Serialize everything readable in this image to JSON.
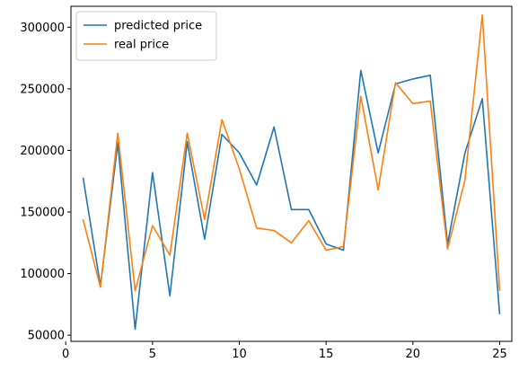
{
  "chart_data": {
    "type": "line",
    "title": "",
    "xlabel": "",
    "ylabel": "",
    "x": [
      1,
      2,
      3,
      4,
      5,
      6,
      7,
      8,
      9,
      10,
      11,
      12,
      13,
      14,
      15,
      16,
      17,
      18,
      19,
      20,
      21,
      22,
      23,
      24,
      25
    ],
    "xlim": [
      0.3,
      25.7
    ],
    "ylim": [
      45000,
      317000
    ],
    "xticks": [
      0,
      5,
      10,
      15,
      20,
      25
    ],
    "xtick_labels": [
      "0",
      "5",
      "10",
      "15",
      "20",
      "25"
    ],
    "yticks": [
      50000,
      100000,
      150000,
      200000,
      250000,
      300000
    ],
    "ytick_labels": [
      "50000",
      "100000",
      "150000",
      "200000",
      "250000",
      "300000"
    ],
    "grid": false,
    "legend_position": "top-left",
    "series": [
      {
        "name": "predicted price",
        "color": "#1f77b4",
        "values": [
          178000,
          90000,
          206000,
          55000,
          182000,
          82000,
          207000,
          128000,
          213000,
          198000,
          172000,
          219000,
          152000,
          152000,
          124000,
          119000,
          265000,
          198000,
          254000,
          258000,
          261000,
          124000,
          198000,
          242000,
          67000
        ]
      },
      {
        "name": "real price",
        "color": "#ff7f0e",
        "values": [
          144000,
          89000,
          214000,
          86000,
          139000,
          115000,
          214000,
          144000,
          225000,
          185000,
          137000,
          135000,
          125000,
          143000,
          119000,
          122000,
          244000,
          168000,
          255000,
          238000,
          240000,
          120000,
          176000,
          310000,
          86000
        ]
      }
    ]
  }
}
